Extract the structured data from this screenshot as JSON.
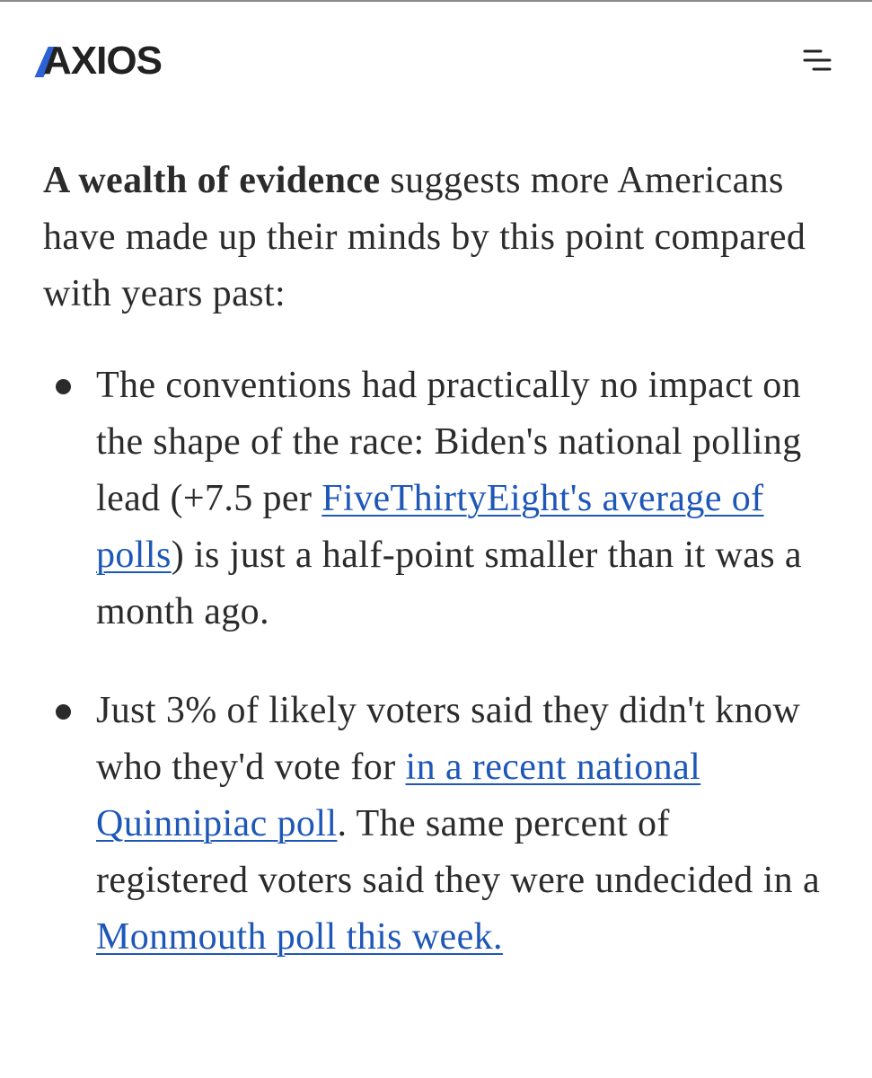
{
  "header": {
    "logo": "AXIOS"
  },
  "intro": {
    "segments": [
      {
        "text": "A wealth of evidence",
        "style": "bold"
      },
      {
        "text": " suggests more Americans have made up their minds by this point compared with years past:"
      }
    ]
  },
  "bullets": [
    {
      "segments": [
        {
          "text": "The conventions had practically no impact on the shape of the race: Biden's national polling lead (+7.5 per "
        },
        {
          "text": "FiveThirtyEight's average of polls",
          "style": "link"
        },
        {
          "text": ") is just a half-point smaller than it was a month ago."
        }
      ]
    },
    {
      "segments": [
        {
          "text": "Just 3% of likely voters said they didn't know who they'd vote for "
        },
        {
          "text": "in a recent national Quinnipiac poll",
          "style": "link"
        },
        {
          "text": ". The same percent of registered voters said they were undecided in a "
        },
        {
          "text": "Monmouth poll this week.",
          "style": "link"
        }
      ]
    }
  ]
}
